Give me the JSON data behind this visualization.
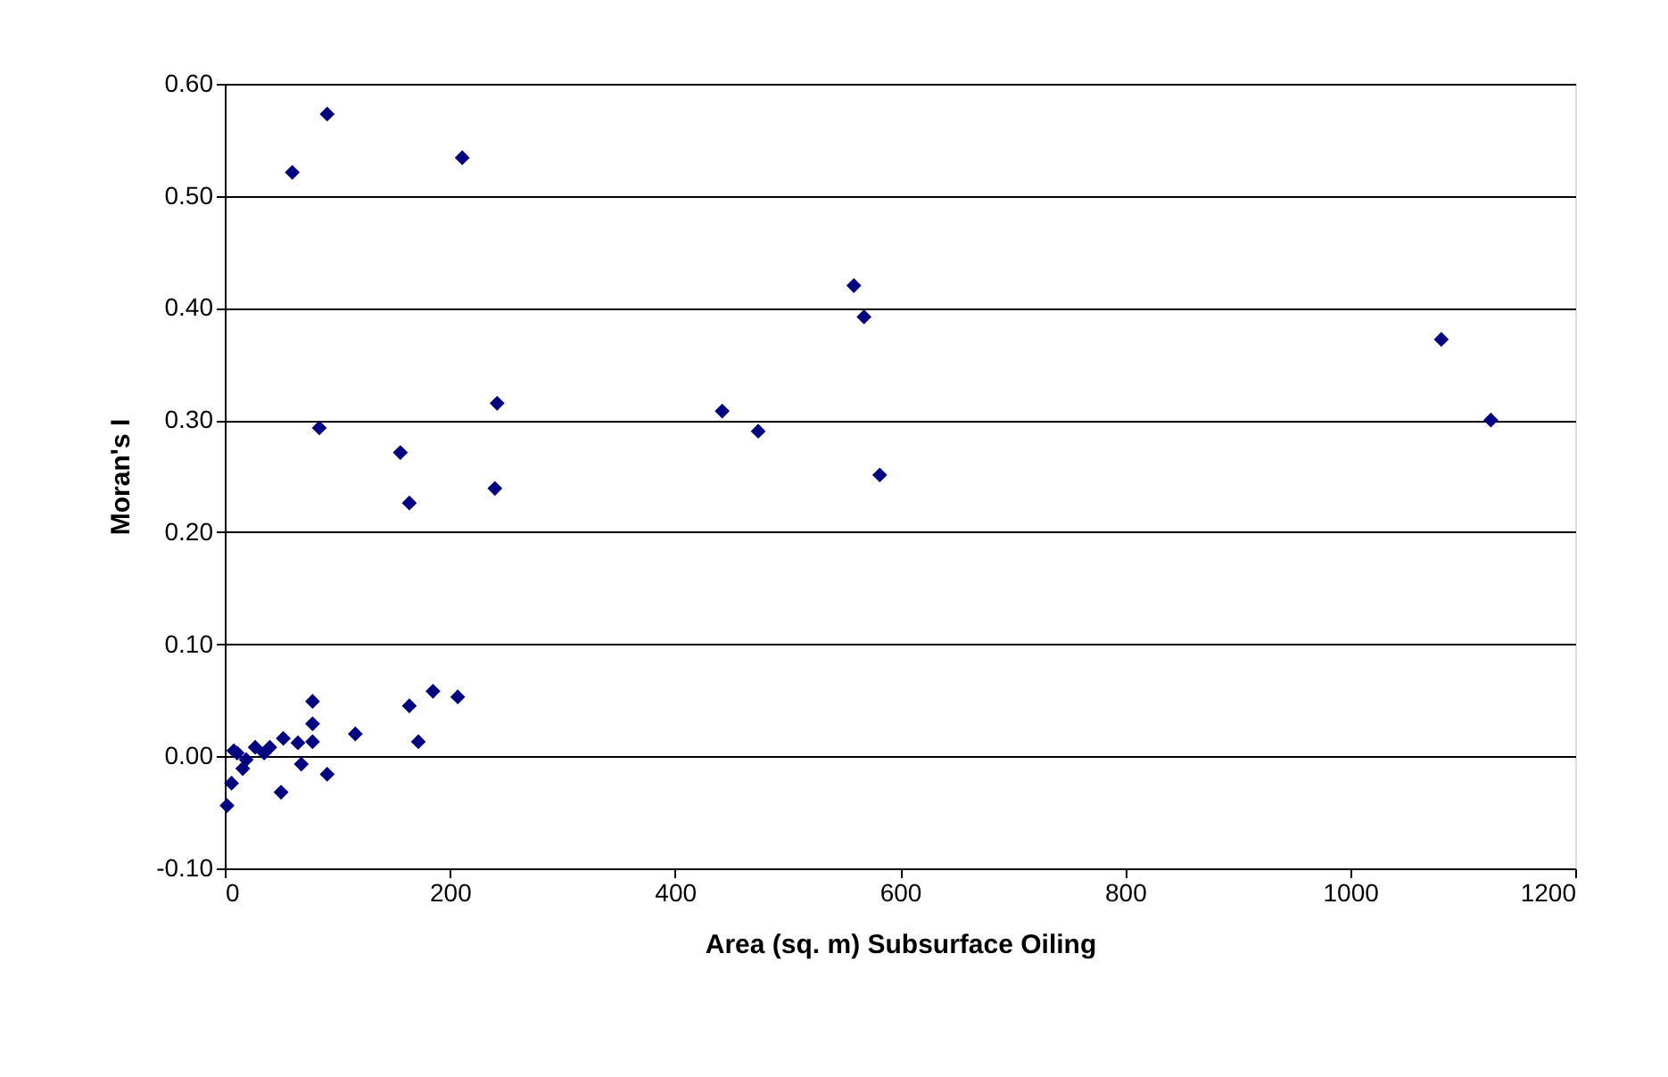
{
  "chart_data": {
    "type": "scatter",
    "xlabel": "Area (sq. m) Subsurface Oiling",
    "ylabel": "Moran's I",
    "x": [
      91,
      60,
      211,
      84,
      156,
      164,
      242,
      240,
      442,
      474,
      559,
      568,
      582,
      1081,
      1125,
      78,
      78,
      78,
      116,
      164,
      185,
      207,
      172,
      91,
      68,
      50,
      2,
      52,
      65,
      6,
      8,
      19,
      27,
      35,
      16,
      40,
      11
    ],
    "series": [
      {
        "color": "#000080",
        "values": [
          0.573,
          0.521,
          0.534,
          0.293,
          0.271,
          0.226,
          0.315,
          0.239,
          0.308,
          0.29,
          0.42,
          0.392,
          0.251,
          0.372,
          0.3,
          0.049,
          0.029,
          0.013,
          0.02,
          0.045,
          0.058,
          0.053,
          0.013,
          -0.016,
          -0.007,
          -0.032,
          -0.044,
          0.016,
          0.012,
          -0.024,
          0.005,
          -0.003,
          0.008,
          0.003,
          -0.011,
          0.008,
          0.003
        ]
      }
    ],
    "xlim": [
      0,
      1200
    ],
    "xticks": [
      0,
      200,
      400,
      600,
      800,
      1000,
      1200
    ],
    "ylim": [
      -0.1,
      0.6
    ],
    "yticks": [
      {
        "value": -0.1,
        "label": "-0.10"
      },
      {
        "value": 0,
        "label": "0.00"
      },
      {
        "value": 0.1,
        "label": "0.10"
      },
      {
        "value": 0.2,
        "label": "0.20"
      },
      {
        "value": 0.3,
        "label": "0.30"
      },
      {
        "value": 0.4,
        "label": "0.40"
      },
      {
        "value": 0.5,
        "label": "0.50"
      },
      {
        "value": 0.6,
        "label": "0.60"
      }
    ],
    "grid": "y",
    "marker": "diamond"
  }
}
